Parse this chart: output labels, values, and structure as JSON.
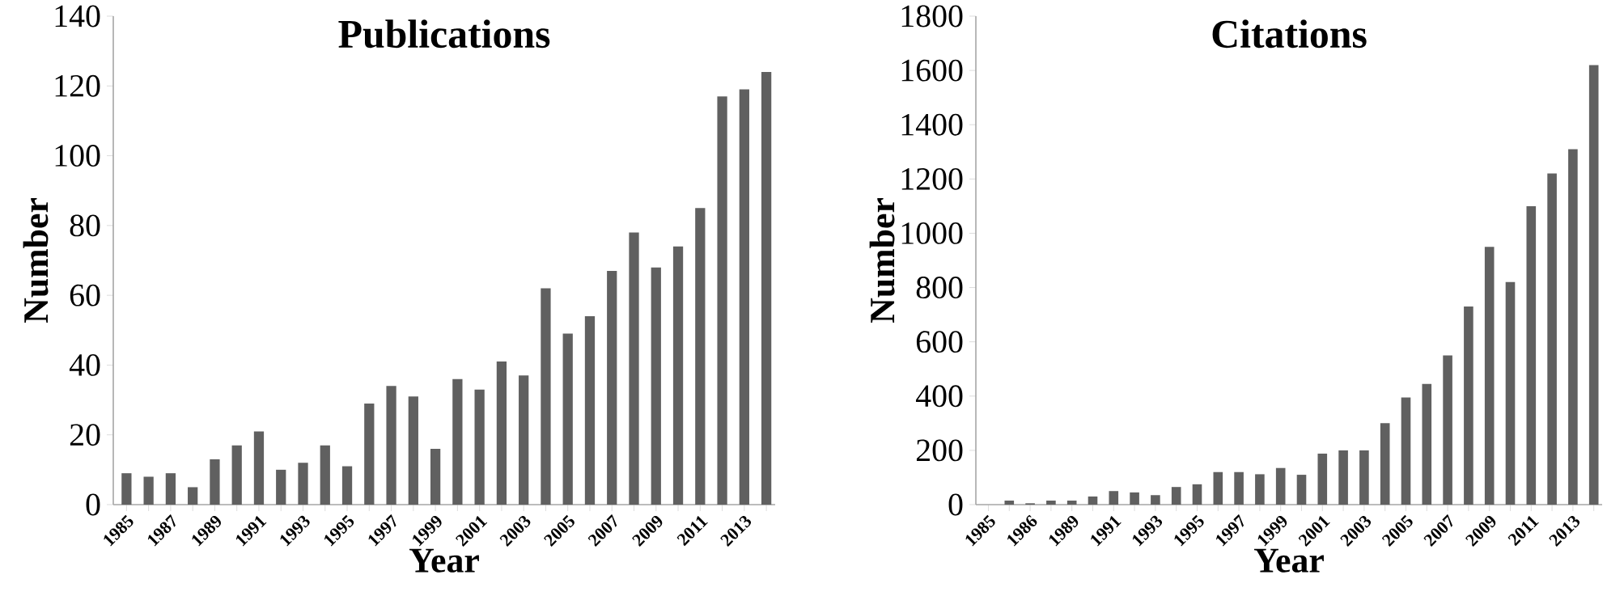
{
  "chart_data": [
    {
      "type": "bar",
      "title": "Publications",
      "xlabel": "Year",
      "ylabel": "Number",
      "color": "#606060",
      "ylim": [
        0,
        140
      ],
      "yticks": [
        0,
        20,
        40,
        60,
        80,
        100,
        120,
        140
      ],
      "categories": [
        "1985",
        null,
        "1987",
        null,
        "1989",
        null,
        "1991",
        null,
        "1993",
        null,
        "1995",
        null,
        "1997",
        null,
        "1999",
        null,
        "2001",
        null,
        "2003",
        null,
        "2005",
        null,
        "2007",
        null,
        "2009",
        null,
        "2011",
        null,
        "2013",
        null
      ],
      "values": [
        9,
        8,
        9,
        5,
        13,
        17,
        21,
        10,
        12,
        17,
        11,
        29,
        34,
        31,
        16,
        36,
        33,
        41,
        37,
        62,
        49,
        54,
        67,
        78,
        68,
        74,
        85,
        117,
        119,
        124
      ]
    },
    {
      "type": "bar",
      "title": "Citations",
      "xlabel": "Year",
      "ylabel": "Number",
      "color": "#606060",
      "ylim": [
        0,
        1800
      ],
      "yticks": [
        0,
        200,
        400,
        600,
        800,
        1000,
        1200,
        1400,
        1600,
        1800
      ],
      "categories": [
        "1985",
        null,
        "1986",
        null,
        "1989",
        null,
        "1991",
        null,
        "1993",
        null,
        "1995",
        null,
        "1997",
        null,
        "1999",
        null,
        "2001",
        null,
        "2003",
        null,
        "2005",
        null,
        "2007",
        null,
        "2009",
        null,
        "2011",
        null,
        "2013",
        null
      ],
      "values": [
        0,
        15,
        5,
        15,
        15,
        30,
        50,
        45,
        35,
        65,
        75,
        120,
        120,
        112,
        135,
        110,
        188,
        200,
        200,
        300,
        395,
        445,
        550,
        730,
        950,
        820,
        1100,
        1220,
        1310,
        1620
      ]
    }
  ]
}
